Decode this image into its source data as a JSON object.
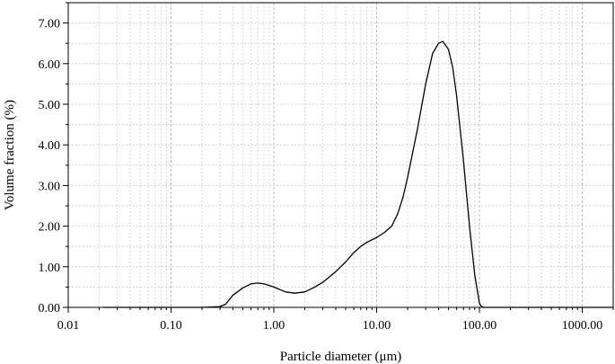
{
  "chart_data": {
    "type": "line",
    "xlabel": "Particle diameter (μm)",
    "ylabel": "Volume fraction (%)",
    "xscale": "log",
    "xlim": [
      0.01,
      2000
    ],
    "ylim": [
      0,
      7.5
    ],
    "grid": true,
    "legend": "none",
    "x_tick_labels": [
      "0.01",
      "0.10",
      "1.00",
      "10.00",
      "100.00",
      "1000.00"
    ],
    "x_tick_values": [
      0.01,
      0.1,
      1,
      10,
      100,
      1000
    ],
    "y_tick_labels": [
      "0.00",
      "1.00",
      "2.00",
      "3.00",
      "4.00",
      "5.00",
      "6.00",
      "7.00"
    ],
    "y_tick_values": [
      0,
      1,
      2,
      3,
      4,
      5,
      6,
      7
    ],
    "series": [
      {
        "color": "#000000",
        "points": [
          [
            0.022,
            0.0
          ],
          [
            0.05,
            0.0
          ],
          [
            0.1,
            0.0
          ],
          [
            0.2,
            0.0
          ],
          [
            0.3,
            0.02
          ],
          [
            0.34,
            0.08
          ],
          [
            0.4,
            0.3
          ],
          [
            0.5,
            0.48
          ],
          [
            0.6,
            0.58
          ],
          [
            0.7,
            0.6
          ],
          [
            0.8,
            0.58
          ],
          [
            1.0,
            0.5
          ],
          [
            1.3,
            0.38
          ],
          [
            1.6,
            0.35
          ],
          [
            2.0,
            0.38
          ],
          [
            2.5,
            0.5
          ],
          [
            3.0,
            0.62
          ],
          [
            4.0,
            0.88
          ],
          [
            5.0,
            1.12
          ],
          [
            6.0,
            1.35
          ],
          [
            7.0,
            1.5
          ],
          [
            8.0,
            1.6
          ],
          [
            10.0,
            1.72
          ],
          [
            12.0,
            1.85
          ],
          [
            14.0,
            2.0
          ],
          [
            16.0,
            2.3
          ],
          [
            18.0,
            2.7
          ],
          [
            20.0,
            3.2
          ],
          [
            25.0,
            4.4
          ],
          [
            30.0,
            5.5
          ],
          [
            35.0,
            6.25
          ],
          [
            40.0,
            6.5
          ],
          [
            44.0,
            6.55
          ],
          [
            50.0,
            6.35
          ],
          [
            55.0,
            5.9
          ],
          [
            60.0,
            5.2
          ],
          [
            70.0,
            3.6
          ],
          [
            80.0,
            2.0
          ],
          [
            90.0,
            0.8
          ],
          [
            100.0,
            0.1
          ],
          [
            105.0,
            0.02
          ],
          [
            110.0,
            0.0
          ],
          [
            200.0,
            0.0
          ],
          [
            500.0,
            0.0
          ],
          [
            1000.0,
            0.0
          ],
          [
            2000.0,
            0.0
          ]
        ]
      }
    ]
  }
}
